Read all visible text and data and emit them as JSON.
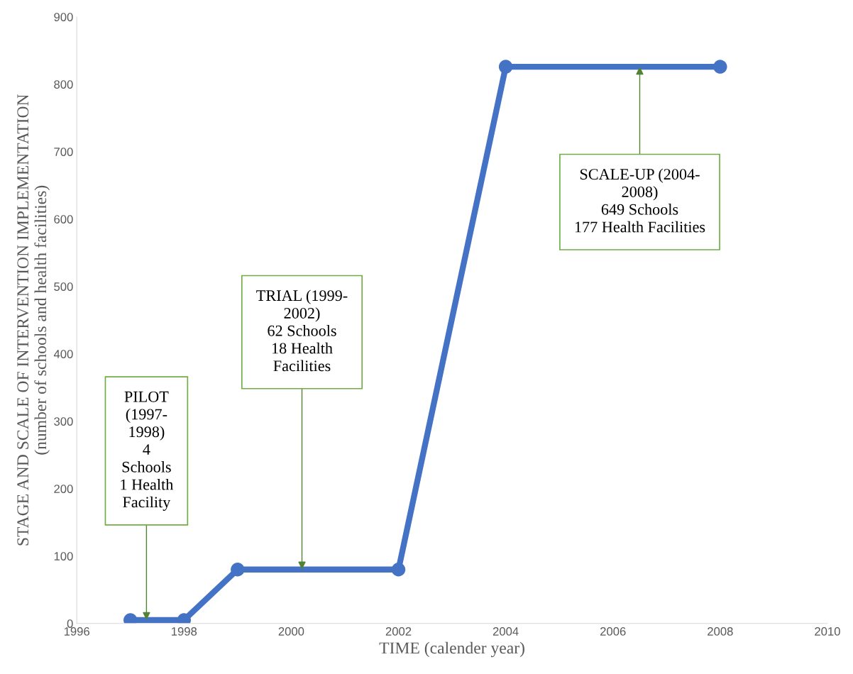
{
  "chart_data": {
    "type": "line",
    "xlabel": "TIME (calender year)",
    "ylabel": "STAGE AND SCALE OF INTERVENTION IMPLEMENTATION\n(number of schools and health facilities)",
    "x": [
      1997,
      1998,
      1999,
      2002,
      2004,
      2008
    ],
    "series": [
      {
        "color": "#4472c4",
        "values": [
          5,
          5,
          80,
          80,
          826,
          826
        ]
      }
    ],
    "xlim": [
      1996,
      2010
    ],
    "xticks": [
      1996,
      1998,
      2000,
      2002,
      2004,
      2006,
      2008,
      2010
    ],
    "ylim": [
      0,
      900
    ],
    "yticks": [
      0,
      100,
      200,
      300,
      400,
      500,
      600,
      700,
      800,
      900
    ],
    "grid": false,
    "marker": "circle",
    "line_style": "solid",
    "legend": false,
    "annotations": [
      {
        "text": "PILOT\n(1997-\n1998)\n4\nSchools\n1 Health\nFacility",
        "x": 1997.3,
        "y": 5
      },
      {
        "text": "TRIAL (1999-\n2002)\n62 Schools\n18 Health\nFacilities",
        "x": 2000.2,
        "y": 80
      },
      {
        "text": "SCALE-UP (2004-\n2008)\n649 Schools\n177 Health Facilities",
        "x": 2006.5,
        "y": 826
      }
    ]
  }
}
